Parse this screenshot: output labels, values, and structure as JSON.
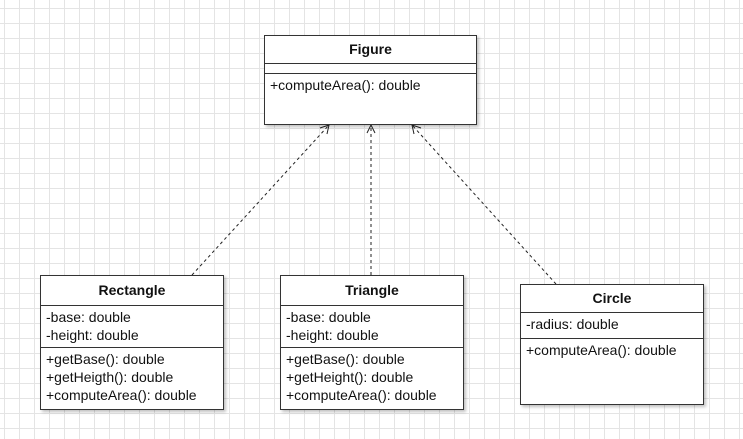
{
  "diagram": {
    "classes": [
      {
        "id": "figure",
        "name": "Figure",
        "attributes": [],
        "operations": [
          "+computeArea(): double"
        ]
      },
      {
        "id": "rectangle",
        "name": "Rectangle",
        "attributes": [
          "-base: double",
          "-height: double"
        ],
        "operations": [
          "+getBase(): double",
          "+getHeigth(): double",
          "+computeArea(): double"
        ]
      },
      {
        "id": "triangle",
        "name": "Triangle",
        "attributes": [
          "-base: double",
          "-height: double"
        ],
        "operations": [
          "+getBase(): double",
          "+getHeight(): double",
          "+computeArea(): double"
        ]
      },
      {
        "id": "circle",
        "name": "Circle",
        "attributes": [
          "-radius: double"
        ],
        "operations": [
          "+computeArea(): double"
        ]
      }
    ],
    "relationships": [
      {
        "type": "realization",
        "from": "rectangle",
        "to": "figure"
      },
      {
        "type": "realization",
        "from": "triangle",
        "to": "figure"
      },
      {
        "type": "realization",
        "from": "circle",
        "to": "figure"
      }
    ],
    "colors": {
      "grid": "#e4e4e4",
      "border": "#333333",
      "text": "#111111",
      "connector": "#222222"
    }
  }
}
